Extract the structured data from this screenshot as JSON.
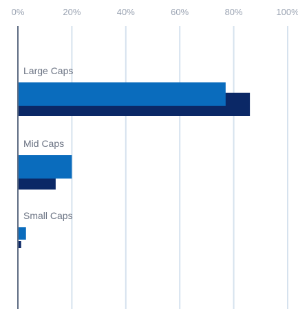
{
  "chart_data": {
    "type": "bar",
    "orientation": "horizontal",
    "categories": [
      "Large Caps",
      "Mid Caps",
      "Small Caps"
    ],
    "series": [
      {
        "values": [
          77,
          20,
          3
        ],
        "color": "#0a6cbd"
      },
      {
        "values": [
          86,
          14,
          1.2
        ],
        "color": "#0b2866"
      }
    ],
    "x_ticks": [
      "0%",
      "20%",
      "40%",
      "60%",
      "80%",
      "100%"
    ],
    "xlim": [
      0,
      100
    ],
    "grid": true,
    "legend": "none",
    "axis_color": "#5d6b82",
    "grid_color": "#d6e2ee"
  }
}
